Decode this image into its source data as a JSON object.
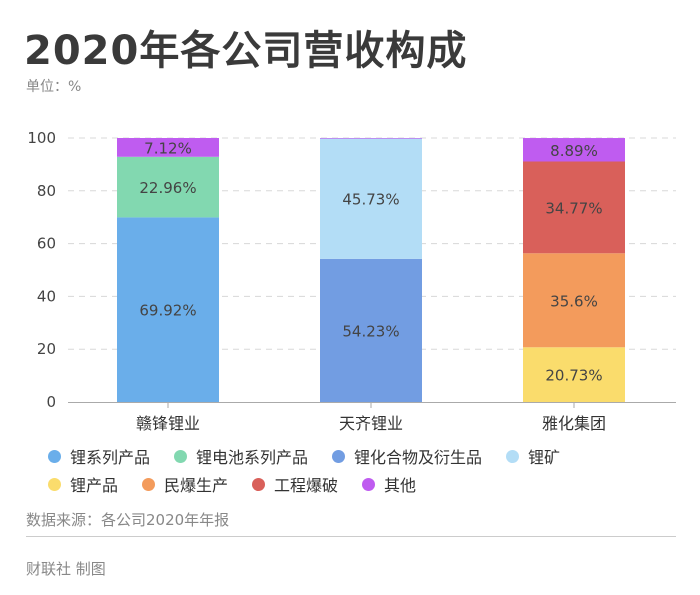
{
  "header": {
    "title": "2020年各公司营收构成",
    "unit": "单位：%"
  },
  "footer": {
    "source": "数据来源：各公司2020年年报",
    "credit": "财联社 制图"
  },
  "chart_data": {
    "type": "bar",
    "stacked": true,
    "categories": [
      "赣锋锂业",
      "天齐锂业",
      "雅化集团"
    ],
    "ylim": [
      0,
      100
    ],
    "yticks": [
      0,
      20,
      40,
      60,
      80,
      100
    ],
    "grid": true,
    "legend_position": "bottom",
    "series": [
      {
        "name": "锂系列产品",
        "color": "#6aaeea",
        "values": [
          69.92,
          0,
          0
        ],
        "labels": [
          "69.92%",
          "",
          ""
        ]
      },
      {
        "name": "锂电池系列产品",
        "color": "#82d8b0",
        "values": [
          22.96,
          0,
          0
        ],
        "labels": [
          "22.96%",
          "",
          ""
        ]
      },
      {
        "name": "锂化合物及衍生品",
        "color": "#729de2",
        "values": [
          0,
          54.23,
          0
        ],
        "labels": [
          "",
          "54.23%",
          ""
        ]
      },
      {
        "name": "锂矿",
        "color": "#b3ddf6",
        "values": [
          0,
          45.73,
          0
        ],
        "labels": [
          "",
          "45.73%",
          ""
        ]
      },
      {
        "name": "锂产品",
        "color": "#fadc6c",
        "values": [
          0,
          0,
          20.73
        ],
        "labels": [
          "",
          "",
          "20.73%"
        ]
      },
      {
        "name": "民爆生产",
        "color": "#f39b5c",
        "values": [
          0,
          0,
          35.6
        ],
        "labels": [
          "",
          "",
          "35.6%"
        ]
      },
      {
        "name": "工程爆破",
        "color": "#d9605a",
        "values": [
          0,
          0,
          34.77
        ],
        "labels": [
          "",
          "",
          "34.77%"
        ]
      },
      {
        "name": "其他",
        "color": "#bf5cf0",
        "values": [
          7.12,
          0.04,
          8.89
        ],
        "labels": [
          "7.12%",
          "",
          "8.89%"
        ]
      }
    ]
  }
}
